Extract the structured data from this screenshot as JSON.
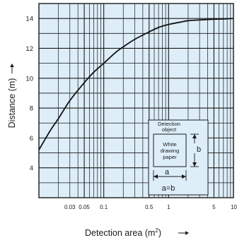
{
  "chart_data": {
    "type": "line",
    "title": "",
    "xlabel": "Detection area (m",
    "xlabel_sup": "2",
    "xlabel_suffix": ")",
    "ylabel": "Distance (m)",
    "x_scale": "log",
    "xlim": [
      0.01,
      10
    ],
    "ylim": [
      2,
      15
    ],
    "grid": true,
    "x_tick_labels": [
      "0.03",
      "0.05",
      "0.1",
      "0.5",
      "1",
      "5",
      "10"
    ],
    "x_tick_values": [
      0.03,
      0.05,
      0.1,
      0.5,
      1,
      5,
      10
    ],
    "y_tick_labels": [
      "4",
      "6",
      "8",
      "10",
      "12",
      "14"
    ],
    "y_tick_values": [
      4,
      6,
      8,
      10,
      12,
      14
    ],
    "series": [
      {
        "x": [
          0.01,
          0.015,
          0.02,
          0.03,
          0.05,
          0.07,
          0.1,
          0.15,
          0.2,
          0.3,
          0.5,
          0.7,
          1,
          1.5,
          2,
          3,
          5,
          7,
          10
        ],
        "y": [
          5.2,
          6.5,
          7.3,
          8.5,
          9.7,
          10.4,
          11.0,
          11.7,
          12.1,
          12.6,
          13.1,
          13.4,
          13.6,
          13.75,
          13.85,
          13.9,
          13.95,
          13.97,
          14.0
        ]
      }
    ],
    "line_color": "#111111",
    "background_color": "#ddeef9",
    "grid_color": "#1a1a1a",
    "inset": {
      "title_line1": "Detection",
      "title_line2": "object",
      "box_line1": "White",
      "box_line2": "drawing",
      "box_line3": "paper",
      "label_b": "b",
      "label_a": "a",
      "label_eq": "a=b"
    }
  }
}
